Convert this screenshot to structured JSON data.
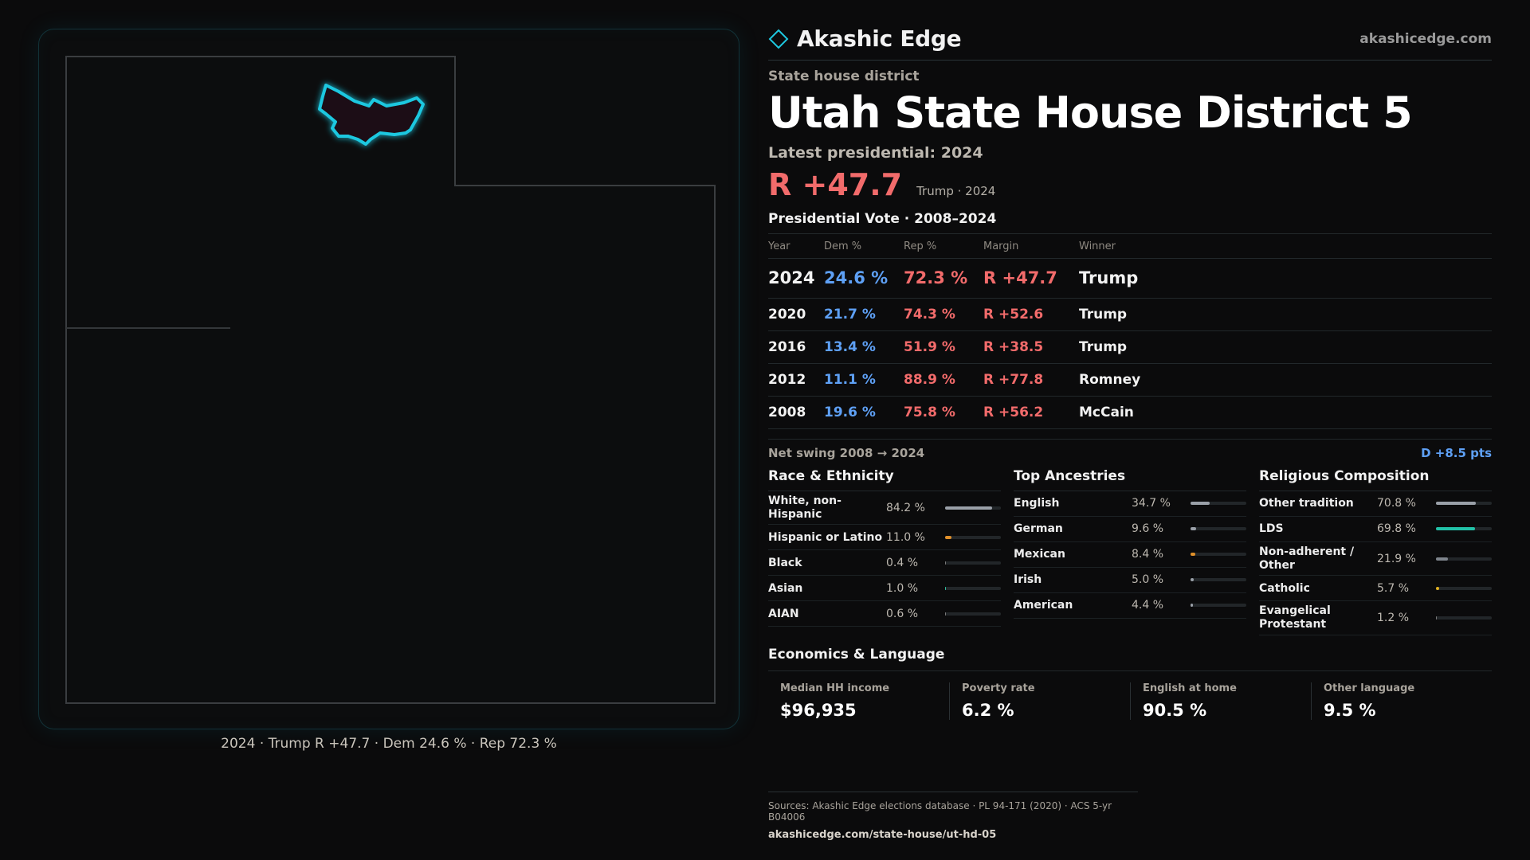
{
  "brand": {
    "name": "Akashic Edge",
    "url": "akashicedge.com"
  },
  "district": {
    "kicker": "State house district",
    "title": "Utah State House District 5",
    "latest_label": "Latest presidential: 2024",
    "margin": "R +47.7",
    "margin_sub": "Trump · 2024"
  },
  "presidential": {
    "title": "Presidential Vote · 2008–2024",
    "columns": [
      "Year",
      "Dem %",
      "Rep %",
      "Margin",
      "Winner"
    ],
    "rows": [
      {
        "year": "2024",
        "dem": "24.6 %",
        "rep": "72.3 %",
        "margin": "R +47.7",
        "winner": "Trump"
      },
      {
        "year": "2020",
        "dem": "21.7 %",
        "rep": "74.3 %",
        "margin": "R +52.6",
        "winner": "Trump"
      },
      {
        "year": "2016",
        "dem": "13.4 %",
        "rep": "51.9 %",
        "margin": "R +38.5",
        "winner": "Trump"
      },
      {
        "year": "2012",
        "dem": "11.1 %",
        "rep": "88.9 %",
        "margin": "R +77.8",
        "winner": "Romney"
      },
      {
        "year": "2008",
        "dem": "19.6 %",
        "rep": "75.8 %",
        "margin": "R +56.2",
        "winner": "McCain"
      }
    ],
    "swing_label": "Net swing 2008 → 2024",
    "swing_value": "D +8.5 pts"
  },
  "race": {
    "title": "Race & Ethnicity",
    "items": [
      {
        "label": "White, non-Hispanic",
        "pct": "84.2 %",
        "value": 84.2,
        "color": "#9aa0a8"
      },
      {
        "label": "Hispanic or Latino",
        "pct": "11.0 %",
        "value": 11.0,
        "color": "#e0902a"
      },
      {
        "label": "Black",
        "pct": "0.4 %",
        "value": 0.4,
        "color": "#7a7a7a"
      },
      {
        "label": "Asian",
        "pct": "1.0 %",
        "value": 1.0,
        "color": "#2fbf9f"
      },
      {
        "label": "AIAN",
        "pct": "0.6 %",
        "value": 0.6,
        "color": "#7a7a7a"
      }
    ]
  },
  "ancestry": {
    "title": "Top Ancestries",
    "items": [
      {
        "label": "English",
        "pct": "34.7 %",
        "value": 34.7,
        "color": "#9aa0a8"
      },
      {
        "label": "German",
        "pct": "9.6 %",
        "value": 9.6,
        "color": "#9aa0a8"
      },
      {
        "label": "Mexican",
        "pct": "8.4 %",
        "value": 8.4,
        "color": "#e0902a"
      },
      {
        "label": "Irish",
        "pct": "5.0 %",
        "value": 5.0,
        "color": "#9aa0a8"
      },
      {
        "label": "American",
        "pct": "4.4 %",
        "value": 4.4,
        "color": "#9aa0a8"
      }
    ]
  },
  "religion": {
    "title": "Religious Composition",
    "items": [
      {
        "label": "Other tradition",
        "pct": "70.8 %",
        "value": 70.8,
        "color": "#9aa0a8"
      },
      {
        "label": "LDS",
        "pct": "69.8 %",
        "value": 69.8,
        "color": "#22c2a8"
      },
      {
        "label": "Non-adherent / Other",
        "pct": "21.9 %",
        "value": 21.9,
        "color": "#7e848c"
      },
      {
        "label": "Catholic",
        "pct": "5.7 %",
        "value": 5.7,
        "color": "#e0b020"
      },
      {
        "label": "Evangelical Protestant",
        "pct": "1.2 %",
        "value": 1.2,
        "color": "#7a7a7a"
      }
    ]
  },
  "economics": {
    "title": "Economics & Language",
    "items": [
      {
        "label": "Median HH income",
        "value": "$96,935"
      },
      {
        "label": "Poverty rate",
        "value": "6.2 %"
      },
      {
        "label": "English at home",
        "value": "90.5 %"
      },
      {
        "label": "Other language",
        "value": "9.5 %"
      }
    ]
  },
  "map": {
    "caption": "2024 · Trump R +47.7 · Dem 24.6 % · Rep 72.3 %",
    "district_color": "#1ec8e0"
  },
  "footer": {
    "sources": "Sources: Akashic Edge elections database · PL 94-171 (2020) · ACS 5-yr B04006",
    "url": "akashicedge.com/state-house/ut-hd-05"
  }
}
